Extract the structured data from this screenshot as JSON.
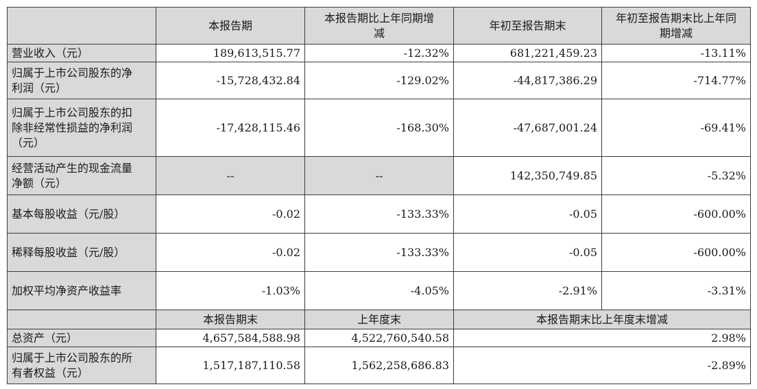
{
  "header": {
    "corner": "",
    "col1": "本报告期",
    "col2": "本报告期比上年同期增减",
    "col3": "年初至报告期末",
    "col4": "年初至报告期末比上年同期增减"
  },
  "rows": [
    {
      "label": "营业收入（元）",
      "v1": "189,613,515.77",
      "v2": "-12.32%",
      "v3": "681,221,459.23",
      "v4": "-13.11%"
    },
    {
      "label": "归属于上市公司股东的净利润（元）",
      "v1": "-15,728,432.84",
      "v2": "-129.02%",
      "v3": "-44,817,386.29",
      "v4": "-714.77%"
    },
    {
      "label": "归属于上市公司股东的扣除非经常性损益的净利润（元）",
      "v1": "-17,428,115.46",
      "v2": "-168.30%",
      "v3": "-47,687,001.24",
      "v4": "-69.41%"
    },
    {
      "label": "经营活动产生的现金流量净额（元）",
      "v1": "--",
      "v2": "--",
      "v3": "142,350,749.85",
      "v4": "-5.32%"
    },
    {
      "label": "基本每股收益（元/股）",
      "v1": "-0.02",
      "v2": "-133.33%",
      "v3": "-0.05",
      "v4": "-600.00%"
    },
    {
      "label": "稀释每股收益（元/股）",
      "v1": "-0.02",
      "v2": "-133.33%",
      "v3": "-0.05",
      "v4": "-600.00%"
    },
    {
      "label": "加权平均净资产收益率",
      "v1": "-1.03%",
      "v2": "-4.05%",
      "v3": "-2.91%",
      "v4": "-3.31%"
    }
  ],
  "header2": {
    "col1": "本报告期末",
    "col2": "上年度末",
    "col3": "本报告期末比上年度末增减"
  },
  "rows2": [
    {
      "label": "总资产（元）",
      "v1": "4,657,584,588.98",
      "v2": "4,522,760,540.58",
      "v3": "2.98%"
    },
    {
      "label": "归属于上市公司股东的所有者权益（元）",
      "v1": "1,517,187,110.58",
      "v2": "1,562,258,686.83",
      "v3": "-2.89%"
    }
  ]
}
